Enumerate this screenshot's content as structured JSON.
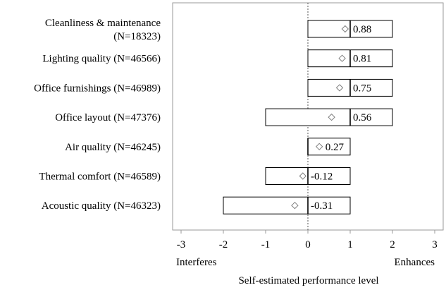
{
  "chart_data": {
    "type": "boxplot",
    "orientation": "horizontal",
    "categories": [
      {
        "label_lines": [
          "Cleanliness & maintenance",
          "(N=18323)"
        ],
        "box": [
          0,
          2
        ],
        "median": 1,
        "mean": 0.88,
        "mean_label": "0.88"
      },
      {
        "label_lines": [
          "Lighting quality (N=46566)"
        ],
        "box": [
          0,
          2
        ],
        "median": 1,
        "mean": 0.81,
        "mean_label": "0.81"
      },
      {
        "label_lines": [
          "Office furnishings (N=46989)"
        ],
        "box": [
          0,
          2
        ],
        "median": 1,
        "mean": 0.75,
        "mean_label": "0.75"
      },
      {
        "label_lines": [
          "Office layout (N=47376)"
        ],
        "box": [
          -1,
          2
        ],
        "median": 1,
        "mean": 0.56,
        "mean_label": "0.56"
      },
      {
        "label_lines": [
          "Air quality (N=46245)"
        ],
        "box": [
          0,
          1
        ],
        "median": 0,
        "mean": 0.27,
        "mean_label": "0.27"
      },
      {
        "label_lines": [
          "Thermal comfort (N=46589)"
        ],
        "box": [
          -1,
          1
        ],
        "median": 0,
        "mean": -0.12,
        "mean_label": "-0.12"
      },
      {
        "label_lines": [
          "Acoustic quality (N=46323)"
        ],
        "box": [
          -2,
          1
        ],
        "median": 0,
        "mean": -0.31,
        "mean_label": "-0.31"
      }
    ],
    "xlim": [
      -3,
      3
    ],
    "xticks": [
      -3,
      -2,
      -1,
      0,
      1,
      2,
      3
    ],
    "xtick_labels": [
      "-3",
      "-2",
      "-1",
      "0",
      "1",
      "2",
      "3"
    ],
    "x_end_labels": {
      "left": "Interferes",
      "right": "Enhances"
    },
    "xlabel": "Self-estimated performance level",
    "reference_line": {
      "x": 0,
      "style": "dotted"
    },
    "grid": false,
    "colors": {
      "box_fill": "#ffffff",
      "box_stroke": "#000000",
      "mean_marker": "#7f7f7f",
      "frame": "#9a9a9a",
      "ref_line": "#555555"
    }
  }
}
